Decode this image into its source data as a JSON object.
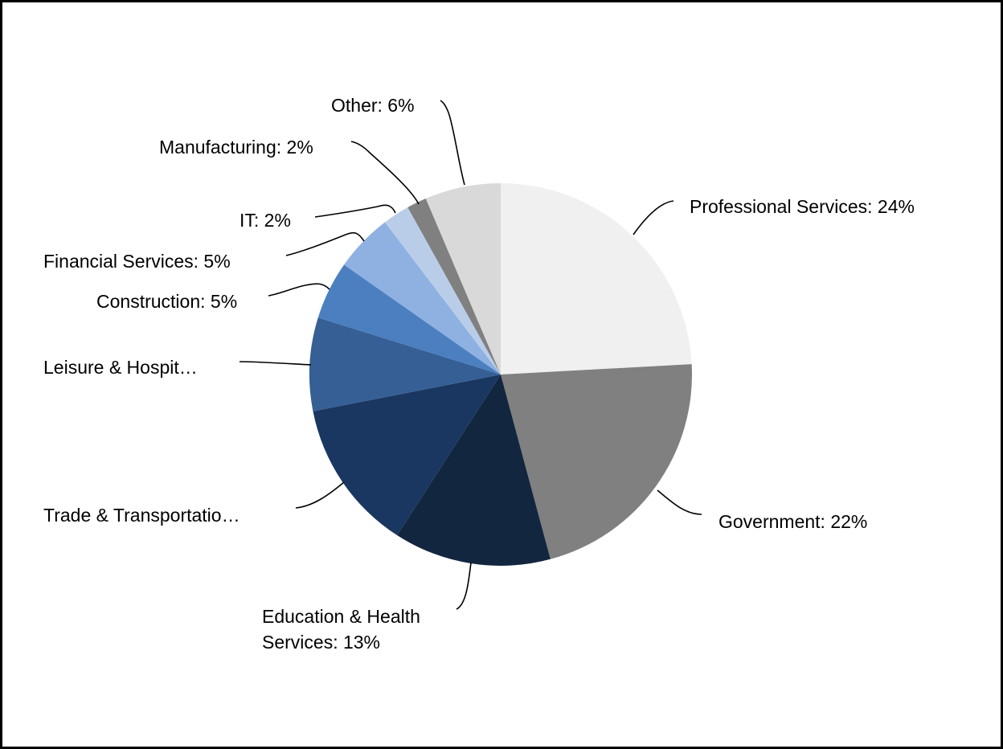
{
  "chart_data": {
    "type": "pie",
    "title": "",
    "start_angle_deg": 0,
    "direction": "clockwise",
    "slices": [
      {
        "label": "Professional Services: 24%",
        "value": 24.5,
        "color": "#f0f0f0"
      },
      {
        "label": "Government: 22%",
        "value": 22,
        "color": "#808080"
      },
      {
        "label": "Education & Health Services: 13%",
        "label_lines": [
          "Education & Health",
          "Services: 13%"
        ],
        "value": 13.5,
        "color": "#132640"
      },
      {
        "label": "Trade & Transportatio…",
        "value": 13,
        "color": "#1a3761"
      },
      {
        "label": "Leisure & Hospit…",
        "value": 8,
        "color": "#355f95"
      },
      {
        "label": "Construction: 5%",
        "value": 5,
        "color": "#4b7fbf"
      },
      {
        "label": "Financial Services: 5%",
        "value": 5,
        "color": "#8eb1e2"
      },
      {
        "label": "IT: 2%",
        "value": 2.3,
        "color": "#b9cde9"
      },
      {
        "label": "Manufacturing: 2%",
        "value": 1.7,
        "color": "#808080"
      },
      {
        "label": "Other: 6%",
        "value": 6.5,
        "color": "#d9d9d9"
      }
    ]
  }
}
